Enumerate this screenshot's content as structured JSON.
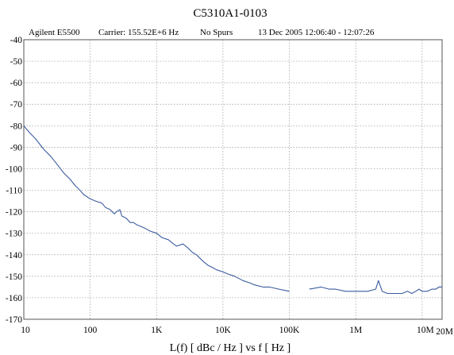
{
  "chart_data": {
    "type": "line",
    "title": "C5310A1-0103",
    "header": {
      "instrument": "Agilent E5500",
      "carrier": "Carrier: 155.52E+6 Hz",
      "spurs": "No Spurs",
      "timestamp": "13 Dec 2005  12:06:40 - 12:07:26"
    },
    "xlabel": "L(f)  [ dBc / Hz ]  vs  f  [ Hz ]",
    "ylabel": "",
    "x_scale": "log",
    "xlim": [
      10,
      20000000
    ],
    "ylim": [
      -170,
      -40
    ],
    "x_ticks": [
      {
        "value": 10,
        "label": "10"
      },
      {
        "value": 100,
        "label": "100"
      },
      {
        "value": 1000,
        "label": "1K"
      },
      {
        "value": 10000,
        "label": "10K"
      },
      {
        "value": 100000,
        "label": "100K"
      },
      {
        "value": 1000000,
        "label": "1M"
      },
      {
        "value": 10000000,
        "label": "10M"
      },
      {
        "value": 20000000,
        "label": "20M"
      }
    ],
    "y_ticks": [
      {
        "value": -40,
        "label": "-40"
      },
      {
        "value": -50,
        "label": "-50"
      },
      {
        "value": -60,
        "label": "-60"
      },
      {
        "value": -70,
        "label": "-70"
      },
      {
        "value": -80,
        "label": "-80"
      },
      {
        "value": -90,
        "label": "-90"
      },
      {
        "value": -100,
        "label": "-100"
      },
      {
        "value": -110,
        "label": "-110"
      },
      {
        "value": -120,
        "label": "-120"
      },
      {
        "value": -130,
        "label": "-130"
      },
      {
        "value": -140,
        "label": "-140"
      },
      {
        "value": -150,
        "label": "-150"
      },
      {
        "value": -160,
        "label": "-160"
      },
      {
        "value": -170,
        "label": "-170"
      }
    ],
    "grid": true,
    "colors": {
      "trace": "#3a5c9e",
      "grid": "#9a9a9a",
      "frame": "#555555"
    },
    "series": [
      {
        "x": [
          10,
          12,
          15,
          20,
          25,
          30,
          40,
          50,
          60,
          70,
          80,
          100,
          120,
          150,
          170,
          200,
          230,
          250,
          280,
          300,
          350,
          400,
          450,
          500,
          600,
          700,
          800,
          1000,
          1200,
          1500,
          1800,
          2000,
          2500,
          3000,
          3500,
          4000,
          5000,
          6000,
          7000,
          8000,
          10000,
          12000,
          15000,
          20000,
          25000,
          30000,
          40000,
          50000,
          70000,
          100000
        ],
        "y": [
          -80,
          -83,
          -86,
          -91,
          -94,
          -97,
          -102,
          -105,
          -108,
          -110,
          -112,
          -114,
          -115,
          -116,
          -118,
          -119,
          -121,
          -120,
          -119,
          -122,
          -123,
          -125,
          -125,
          -126,
          -127,
          -128,
          -129,
          -130,
          -132,
          -133,
          -135,
          -136,
          -135,
          -137,
          -139,
          -140,
          -143,
          -145,
          -146,
          -147,
          -148,
          -149,
          -150,
          -152,
          -153,
          -154,
          -155,
          -155,
          -156,
          -157
        ]
      },
      {
        "x": [
          200000,
          300000,
          400000,
          500000,
          700000,
          1000000,
          1500000,
          2000000,
          2200000,
          2500000,
          3000000,
          4000000,
          5000000,
          6000000,
          7000000,
          8000000,
          9000000,
          10000000,
          12000000,
          14000000,
          16000000,
          18000000,
          20000000
        ],
        "y": [
          -156,
          -155,
          -156,
          -156,
          -157,
          -157,
          -157,
          -156,
          -152,
          -157,
          -158,
          -158,
          -158,
          -157,
          -158,
          -157,
          -156,
          -157,
          -157,
          -156,
          -156,
          -155,
          -155
        ]
      }
    ]
  }
}
